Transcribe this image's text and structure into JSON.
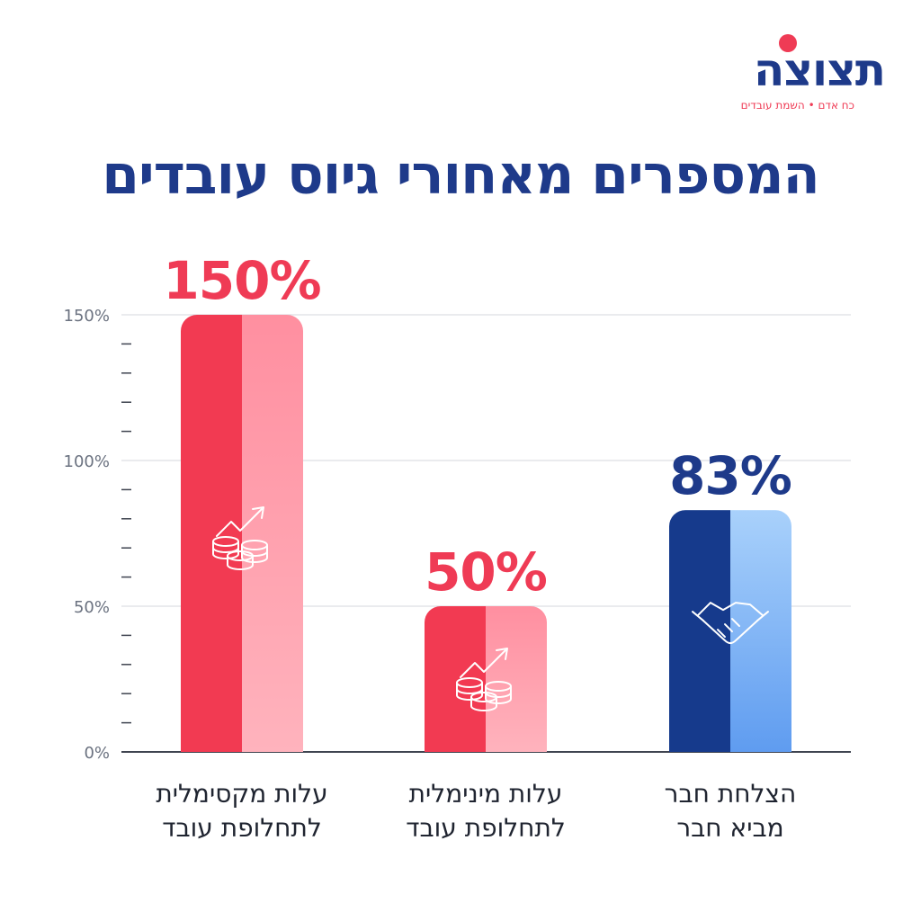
{
  "header": {
    "logo_text": "תצוצה",
    "logo_tagline": "כח אדם • השמת עובדים",
    "title": "המספרים מאחורי גיוס עובדים"
  },
  "colors": {
    "title": "#1e3a8a",
    "red_dark": "#f23a52",
    "red_light": "#ff8fa0",
    "blue_dark": "#163a8c",
    "blue_light": "#7fb3f7",
    "label_red": "#ef3b55",
    "label_blue": "#1e3a8a"
  },
  "icons": [
    "coins-growth-icon",
    "coins-growth-icon",
    "handshake-icon"
  ],
  "chart_data": {
    "type": "bar",
    "categories": [
      [
        "עלות מקסימלית",
        "לתחלופת עובד"
      ],
      [
        "עלות מינימלית",
        "לתחלופת עובד"
      ],
      [
        "הצלחת חבר",
        "מביא חבר"
      ]
    ],
    "values": [
      150,
      50,
      83
    ],
    "value_labels": [
      "150%",
      "50%",
      "83%"
    ],
    "yticks": [
      {
        "value": 0,
        "label": "0%"
      },
      {
        "value": 50,
        "label": "50%"
      },
      {
        "value": 100,
        "label": "100%"
      },
      {
        "value": 150,
        "label": "150%"
      }
    ],
    "ylim": [
      0,
      150
    ],
    "grid": true
  }
}
